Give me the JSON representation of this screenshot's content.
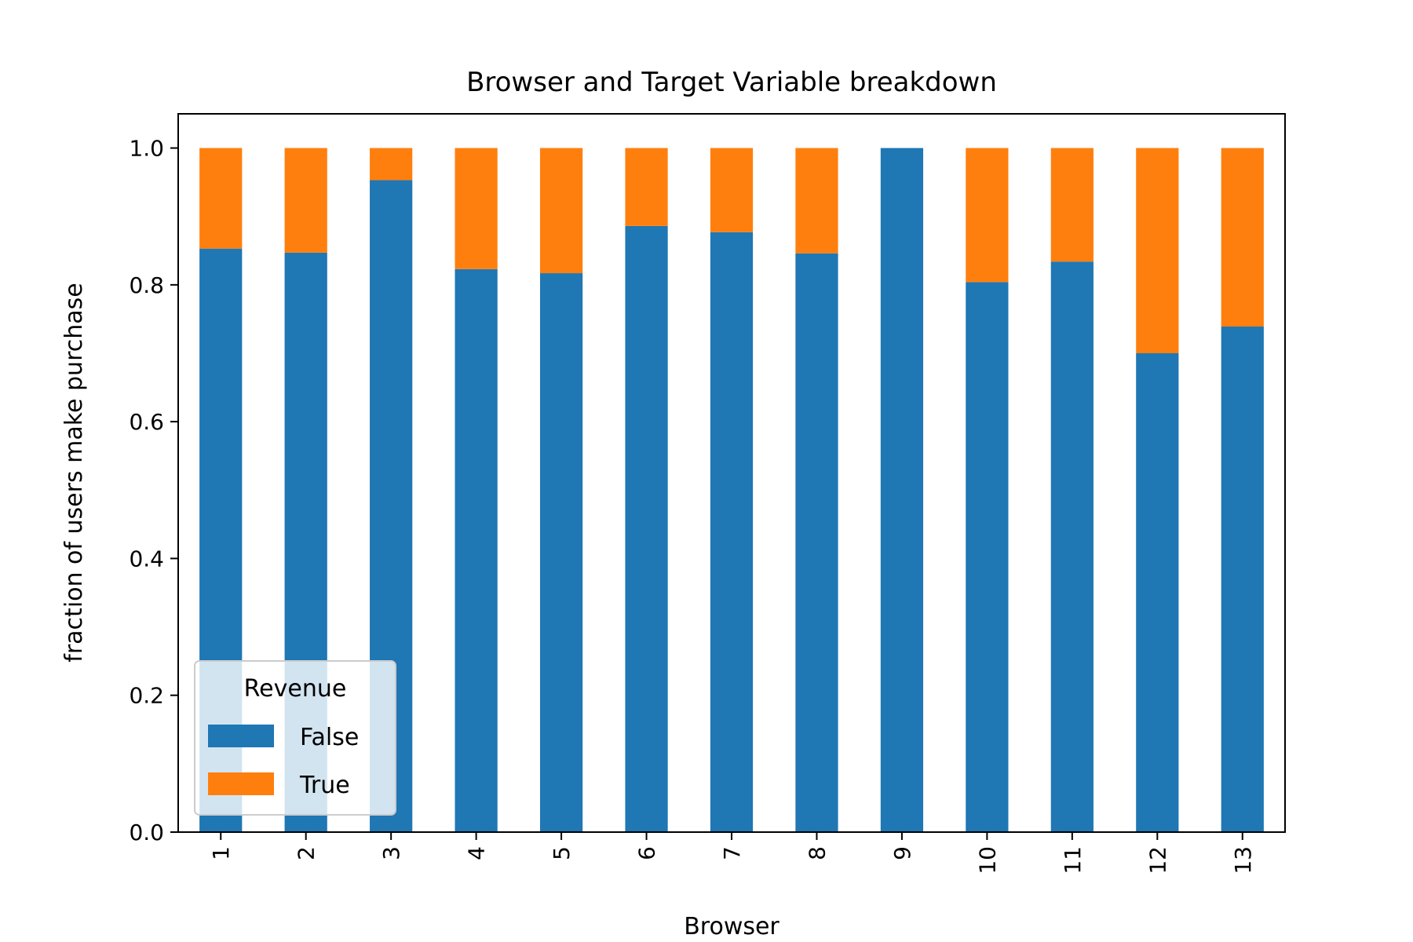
{
  "chart_data": {
    "type": "bar",
    "stacked": true,
    "title": "Browser and Target Variable breakdown",
    "xlabel": "Browser",
    "ylabel": "fraction of users make purchase",
    "categories": [
      "1",
      "2",
      "3",
      "4",
      "5",
      "6",
      "7",
      "8",
      "9",
      "10",
      "11",
      "12",
      "13"
    ],
    "series": [
      {
        "name": "False",
        "color": "#1f77b4",
        "values": [
          0.853,
          0.847,
          0.953,
          0.823,
          0.817,
          0.886,
          0.877,
          0.846,
          1.0,
          0.804,
          0.834,
          0.7,
          0.739
        ]
      },
      {
        "name": "True",
        "color": "#ff7f0e",
        "values": [
          0.147,
          0.153,
          0.047,
          0.177,
          0.183,
          0.114,
          0.123,
          0.154,
          0.0,
          0.196,
          0.166,
          0.3,
          0.261
        ]
      }
    ],
    "ylim": [
      0,
      1.05
    ],
    "yticks": [
      "0.0",
      "0.2",
      "0.4",
      "0.6",
      "0.8",
      "1.0"
    ],
    "ytick_values": [
      0,
      0.2,
      0.4,
      0.6,
      0.8,
      1.0
    ],
    "legend": {
      "title": "Revenue",
      "placement": "lower-left"
    },
    "grid": false
  }
}
